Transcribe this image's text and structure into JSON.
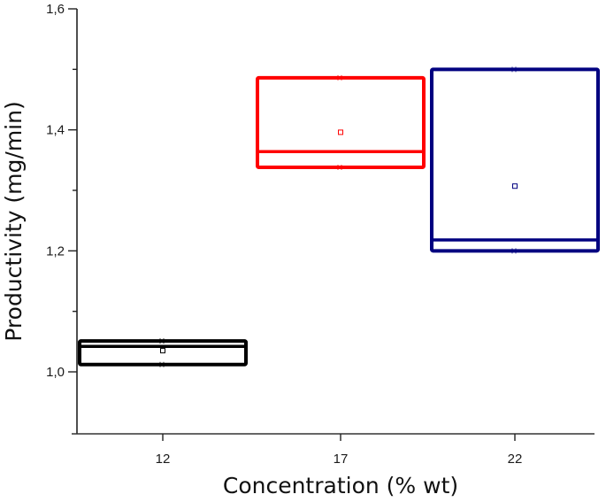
{
  "chart_data": {
    "type": "box",
    "title": "",
    "xlabel": "Concentration (% wt)",
    "ylabel": "Productivity (mg/min)",
    "categories": [
      "12",
      "17",
      "22"
    ],
    "ylim": [
      0.897,
      1.6
    ],
    "yticks": [
      1.0,
      1.2,
      1.4,
      1.6
    ],
    "ytick_labels": [
      "1,0",
      "1,2",
      "1,4",
      "1,6"
    ],
    "ytick_minor": [
      1.1,
      1.3,
      1.5
    ],
    "grid": false,
    "legend": null,
    "series": [
      {
        "name": "12",
        "color": "#000000",
        "q1": 1.012,
        "median": 1.042,
        "q3": 1.051,
        "mean": 1.035,
        "min": 1.012,
        "max": 1.051
      },
      {
        "name": "17",
        "color": "#ff0000",
        "q1": 1.338,
        "median": 1.364,
        "q3": 1.486,
        "mean": 1.396,
        "min": 1.338,
        "max": 1.486
      },
      {
        "name": "22",
        "color": "#000080",
        "q1": 1.2,
        "median": 1.218,
        "q3": 1.5,
        "mean": 1.307,
        "min": 1.2,
        "max": 1.5
      }
    ]
  }
}
